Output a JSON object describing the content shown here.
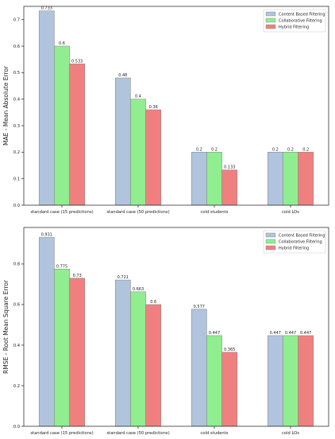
{
  "chart_data": [
    {
      "type": "bar",
      "ylabel": "MAE - Mean Absolute Error",
      "xlabel": "",
      "title": "",
      "ylim": [
        0,
        0.75
      ],
      "yticks": [
        0.0,
        0.1,
        0.2,
        0.3,
        0.4,
        0.5,
        0.6,
        0.7
      ],
      "ytick_labels": [
        "0.0",
        "0.1",
        "0.2",
        "0.3",
        "0.4",
        "0.5",
        "0.6",
        "0.7"
      ],
      "grid": false,
      "legend_position": "top-right",
      "categories": [
        "standard case (15 predictions)",
        "standard case (50 predictions)",
        "cold students",
        "cold LOs"
      ],
      "series": [
        {
          "name": "Content Based Filtering",
          "color": "#b0c4de",
          "values": [
            0.733,
            0.48,
            0.2,
            0.2
          ],
          "labels": [
            "0.733",
            "0.48",
            "0.2",
            "0.2"
          ]
        },
        {
          "name": "Collaborative Filtering",
          "color": "#90ee90",
          "values": [
            0.6,
            0.4,
            0.2,
            0.2
          ],
          "labels": [
            "0.6",
            "0.4",
            "0.2",
            "0.2"
          ]
        },
        {
          "name": "Hybrid Filtering",
          "color": "#f08080",
          "values": [
            0.533,
            0.36,
            0.133,
            0.2
          ],
          "labels": [
            "0.533",
            "0.36",
            "0.133",
            "0.2"
          ]
        }
      ]
    },
    {
      "type": "bar",
      "ylabel": "RMSE - Root Mean Square Error",
      "xlabel": "",
      "title": "",
      "ylim": [
        0,
        0.98
      ],
      "yticks": [
        0.0,
        0.2,
        0.4,
        0.6,
        0.8
      ],
      "ytick_labels": [
        "0.0",
        "0.2",
        "0.4",
        "0.6",
        "0.8"
      ],
      "grid": false,
      "legend_position": "top-right",
      "categories": [
        "standard case (15 predictions)",
        "standard case (50 predictions)",
        "cold students",
        "cold LOs"
      ],
      "series": [
        {
          "name": "Content Based Filtering",
          "color": "#b0c4de",
          "values": [
            0.931,
            0.721,
            0.577,
            0.447
          ],
          "labels": [
            "0.931",
            "0.721",
            "0.577",
            "0.447"
          ]
        },
        {
          "name": "Collaborative Filtering",
          "color": "#90ee90",
          "values": [
            0.775,
            0.663,
            0.447,
            0.447
          ],
          "labels": [
            "0.775",
            "0.663",
            "0.447",
            "0.447"
          ]
        },
        {
          "name": "Hybrid Filtering",
          "color": "#f08080",
          "values": [
            0.73,
            0.6,
            0.365,
            0.447
          ],
          "labels": [
            "0.73",
            "0.6",
            "0.365",
            "0.447"
          ]
        }
      ]
    }
  ]
}
